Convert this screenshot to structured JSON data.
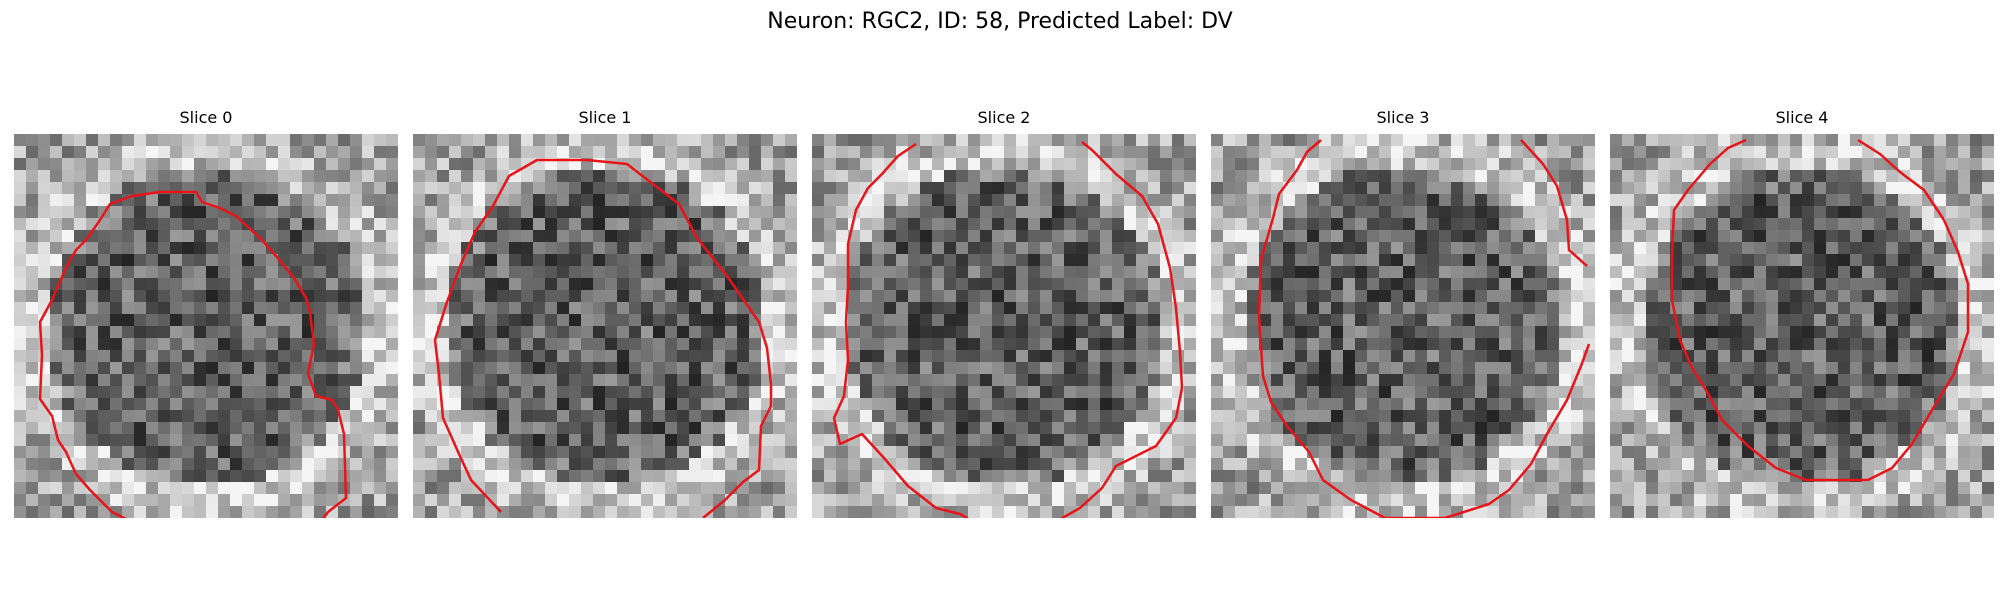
{
  "figure": {
    "title": "Neuron: RGC2, ID: 58, Predicted Label: DV"
  },
  "colors": {
    "contour": "#e8141a",
    "background": "#ffffff"
  },
  "slices": [
    {
      "title": "Slice 0",
      "texture_seed": 11,
      "contour_label": "red cell-boundary contour"
    },
    {
      "title": "Slice 1",
      "texture_seed": 23,
      "contour_label": "red cell-boundary contour"
    },
    {
      "title": "Slice 2",
      "texture_seed": 37,
      "contour_label": "red cell-boundary contour"
    },
    {
      "title": "Slice 3",
      "texture_seed": 41,
      "contour_label": "red cell-boundary contour"
    },
    {
      "title": "Slice 4",
      "texture_seed": 59,
      "contour_label": "red cell-boundary contour"
    }
  ]
}
